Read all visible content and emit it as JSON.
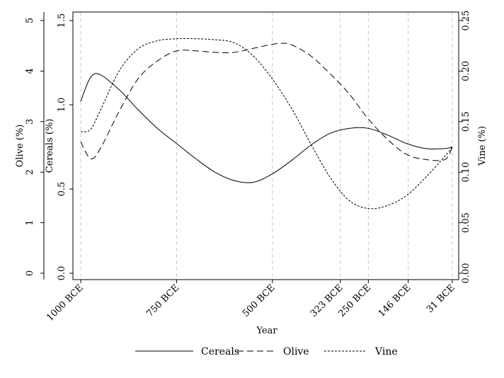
{
  "chart_data": {
    "type": "line",
    "title": "",
    "xlabel": "Year",
    "x_ticks": [
      {
        "year": -1000,
        "label": "1000 BCE"
      },
      {
        "year": -750,
        "label": "750 BCE"
      },
      {
        "year": -500,
        "label": "500 BCE"
      },
      {
        "year": -323,
        "label": "323 BCE"
      },
      {
        "year": -250,
        "label": "250 BCE"
      },
      {
        "year": -146,
        "label": "146 BCE"
      },
      {
        "year": -31,
        "label": "31 BCE"
      }
    ],
    "xlim": [
      -1000,
      -31
    ],
    "grid": "vertical dashed at x ticks",
    "axes": {
      "olive": {
        "label": "Olive (%)",
        "range": [
          0,
          5
        ],
        "ticks": [
          "0",
          "1",
          "2",
          "3",
          "4",
          "5"
        ],
        "tick_values": [
          0,
          1,
          2,
          3,
          4,
          5
        ]
      },
      "cereals": {
        "label": "Cereals (%)",
        "range": [
          0,
          1.5
        ],
        "ticks": [
          "0.0",
          "0.5",
          "1.0",
          "1.5"
        ],
        "tick_values": [
          0,
          0.5,
          1.0,
          1.5
        ]
      },
      "vine": {
        "label": "Vine (%)",
        "range": [
          0,
          0.25
        ],
        "ticks": [
          "0.00",
          "0.05",
          "0.10",
          "0.15",
          "0.20",
          "0.25"
        ],
        "tick_values": [
          0,
          0.05,
          0.1,
          0.15,
          0.2,
          0.25
        ]
      }
    },
    "series": [
      {
        "name": "Cereals",
        "axis": "cereals",
        "style": "solid",
        "x": [
          -1000,
          -975,
          -950,
          -900,
          -850,
          -800,
          -750,
          -700,
          -650,
          -600,
          -550,
          -500,
          -450,
          -400,
          -350,
          -300,
          -250,
          -200,
          -150,
          -100,
          -50,
          -31
        ],
        "y": [
          1.02,
          1.16,
          1.18,
          1.09,
          0.97,
          0.86,
          0.77,
          0.68,
          0.6,
          0.55,
          0.54,
          0.59,
          0.67,
          0.76,
          0.83,
          0.86,
          0.86,
          0.82,
          0.77,
          0.74,
          0.74,
          0.75
        ]
      },
      {
        "name": "Olive",
        "axis": "olive",
        "style": "dashed",
        "x": [
          -1000,
          -975,
          -950,
          -900,
          -850,
          -800,
          -750,
          -700,
          -650,
          -600,
          -550,
          -500,
          -475,
          -450,
          -400,
          -350,
          -300,
          -250,
          -200,
          -150,
          -100,
          -50,
          -31
        ],
        "y": [
          2.6,
          2.27,
          2.45,
          3.2,
          3.85,
          4.2,
          4.4,
          4.4,
          4.37,
          4.37,
          4.45,
          4.53,
          4.55,
          4.52,
          4.3,
          3.95,
          3.55,
          3.05,
          2.65,
          2.35,
          2.25,
          2.25,
          2.5
        ]
      },
      {
        "name": "Vine",
        "axis": "vine",
        "style": "dotted",
        "x": [
          -1000,
          -975,
          -950,
          -900,
          -850,
          -800,
          -750,
          -700,
          -650,
          -600,
          -550,
          -500,
          -450,
          -400,
          -350,
          -300,
          -250,
          -200,
          -150,
          -100,
          -50,
          -31
        ],
        "y": [
          0.14,
          0.142,
          0.16,
          0.2,
          0.222,
          0.23,
          0.232,
          0.232,
          0.231,
          0.228,
          0.215,
          0.192,
          0.163,
          0.128,
          0.095,
          0.072,
          0.064,
          0.067,
          0.077,
          0.095,
          0.116,
          0.125
        ]
      }
    ],
    "legend": {
      "position": "bottom",
      "items": [
        {
          "label": "Cereals",
          "style": "solid"
        },
        {
          "label": "Olive",
          "style": "dashed"
        },
        {
          "label": "Vine",
          "style": "dotted"
        }
      ]
    }
  }
}
